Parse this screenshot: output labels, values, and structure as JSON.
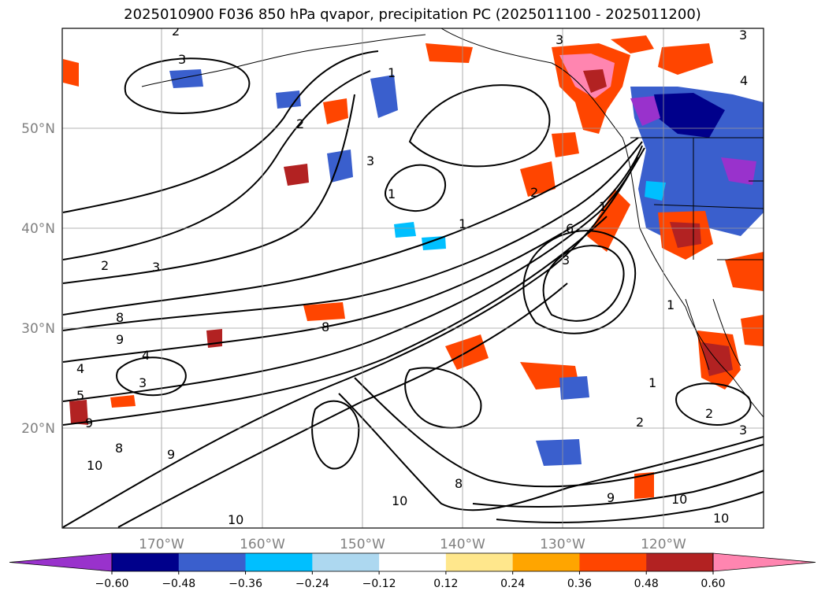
{
  "title": "2025010900 F036 850 hPa qvapor, precipitation PC (2025011100 - 2025011200)",
  "lat_labels": [
    "50°N",
    "40°N",
    "30°N",
    "20°N"
  ],
  "lon_labels": [
    "170°W",
    "160°W",
    "150°W",
    "140°W",
    "130°W",
    "120°W"
  ],
  "colorbar": {
    "tick_labels": [
      "−0.60",
      "−0.48",
      "−0.36",
      "−0.24",
      "−0.12",
      "0.12",
      "0.24",
      "0.36",
      "0.48",
      "0.60"
    ],
    "colors": [
      "#9932CC",
      "#00008B",
      "#3A5FCD",
      "#00BFFF",
      "#ADD8F0",
      "#FFFFFF",
      "#FFE78C",
      "#FFA500",
      "#FF4500",
      "#B22222",
      "#FF85B0"
    ]
  },
  "contour_labels": [
    "1",
    "1",
    "1",
    "1",
    "1",
    "1",
    "2",
    "2",
    "2",
    "2",
    "2",
    "2",
    "3",
    "3",
    "3",
    "3",
    "3",
    "3",
    "3",
    "3",
    "4",
    "4",
    "4",
    "5",
    "6",
    "8",
    "8",
    "8",
    "8",
    "9",
    "9",
    "9",
    "9",
    "10",
    "10",
    "10",
    "10",
    "10"
  ],
  "colors": {
    "coast": "#000000",
    "grid": "#9a9a9a",
    "contour": "#000000"
  }
}
